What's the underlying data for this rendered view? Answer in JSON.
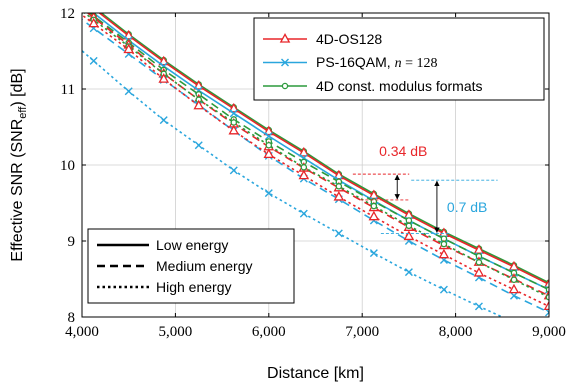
{
  "chart_data": {
    "type": "line",
    "xlabel": "Distance [km]",
    "ylabel_main": "Effective SNR (SNR",
    "ylabel_sub": "eff",
    "ylabel_tail": ") [dB]",
    "xlim": [
      4000,
      9000
    ],
    "ylim": [
      8,
      12
    ],
    "xticks": [
      4000,
      5000,
      6000,
      7000,
      8000,
      9000
    ],
    "xtick_labels": [
      "4,000",
      "5,000",
      "6,000",
      "7,000",
      "8,000",
      "9,000"
    ],
    "yticks": [
      8,
      9,
      10,
      11,
      12
    ],
    "ytick_labels": [
      "8",
      "9",
      "10",
      "11",
      "12"
    ],
    "grid": true,
    "format_legend": [
      {
        "name": "4D-OS128",
        "color": "#e8262a",
        "marker": "triangle"
      },
      {
        "name_main": "PS-16QAM, ",
        "name_math": "n",
        "name_tail": " = 128",
        "color": "#2aa6dd",
        "marker": "cross"
      },
      {
        "name": "4D const. modulus formats",
        "color": "#2c9a3c",
        "marker": "circle"
      }
    ],
    "energy_legend": [
      {
        "name": "Low energy",
        "dash": "solid"
      },
      {
        "name": "Medium energy",
        "dash": "dashed"
      },
      {
        "name": "High energy",
        "dash": "dotted"
      }
    ],
    "marker_x": [
      4125,
      4500,
      4875,
      5250,
      5625,
      6000,
      6375,
      6750,
      7125,
      7500,
      7875,
      8250,
      8625,
      9000
    ],
    "series": [
      {
        "format": "4D const. modulus formats",
        "energy": "Low energy",
        "x": [
          4125,
          4500,
          4875,
          5250,
          5625,
          6000,
          6375,
          6750,
          7125,
          7500,
          7875,
          8250,
          8625,
          9000
        ],
        "y": [
          12.08,
          11.72,
          11.38,
          11.06,
          10.76,
          10.46,
          10.18,
          9.88,
          9.62,
          9.36,
          9.12,
          8.9,
          8.68,
          8.45
        ]
      },
      {
        "format": "4D-OS128",
        "energy": "Low energy",
        "x": [
          4125,
          4500,
          4875,
          5250,
          5625,
          6000,
          6375,
          6750,
          7125,
          7500,
          7875,
          8250,
          8625,
          9000
        ],
        "y": [
          12.06,
          11.7,
          11.36,
          11.04,
          10.74,
          10.44,
          10.16,
          9.86,
          9.6,
          9.34,
          9.1,
          8.88,
          8.66,
          8.43
        ]
      },
      {
        "format": "PS-16QAM, n = 128",
        "energy": "Low energy",
        "x": [
          4125,
          4500,
          4875,
          5250,
          5625,
          6000,
          6375,
          6750,
          7125,
          7500,
          7875,
          8250,
          8625,
          9000
        ],
        "y": [
          12.0,
          11.64,
          11.3,
          10.98,
          10.68,
          10.38,
          10.09,
          9.8,
          9.53,
          9.27,
          9.03,
          8.8,
          8.58,
          8.36
        ]
      },
      {
        "format": "4D const. modulus formats",
        "energy": "Medium energy",
        "x": [
          4125,
          4500,
          4875,
          5250,
          5625,
          6000,
          6375,
          6750,
          7125,
          7500,
          7875,
          8250,
          8625,
          9000
        ],
        "y": [
          11.96,
          11.61,
          11.25,
          10.93,
          10.6,
          10.31,
          10.04,
          9.78,
          9.52,
          9.27,
          9.03,
          8.8,
          8.58,
          8.36
        ]
      },
      {
        "format": "4D-OS128",
        "energy": "Medium energy",
        "x": [
          4125,
          4500,
          4875,
          5250,
          5625,
          6000,
          6375,
          6750,
          7125,
          7500,
          7875,
          8250,
          8625,
          9000
        ],
        "y": [
          11.94,
          11.58,
          11.2,
          10.86,
          10.54,
          10.24,
          9.96,
          9.7,
          9.44,
          9.18,
          8.94,
          8.72,
          8.5,
          8.28
        ]
      },
      {
        "format": "PS-16QAM, n = 128",
        "energy": "Medium energy",
        "x": [
          4125,
          4500,
          4875,
          5250,
          5625,
          6000,
          6375,
          6750,
          7125,
          7500,
          7875,
          8250,
          8625,
          9000
        ],
        "y": [
          11.8,
          11.46,
          11.12,
          10.79,
          10.45,
          10.12,
          9.82,
          9.55,
          9.27,
          9.0,
          8.75,
          8.52,
          8.28,
          8.06
        ]
      },
      {
        "format": "4D const. modulus formats",
        "energy": "High energy",
        "x": [
          4125,
          4500,
          4875,
          5250,
          5625,
          6000,
          6375,
          6750,
          7125,
          7500,
          7875,
          8250,
          8625,
          9000
        ],
        "y": [
          11.91,
          11.56,
          11.2,
          10.86,
          10.56,
          10.26,
          9.97,
          9.72,
          9.46,
          9.2,
          8.96,
          8.72,
          8.49,
          8.26
        ]
      },
      {
        "format": "4D-OS128",
        "energy": "High energy",
        "x": [
          4125,
          4500,
          4875,
          5250,
          5625,
          6000,
          6375,
          6750,
          7125,
          7500,
          7875,
          8250,
          8625,
          9000
        ],
        "y": [
          11.86,
          11.52,
          11.13,
          10.78,
          10.45,
          10.14,
          9.86,
          9.58,
          9.32,
          9.06,
          8.82,
          8.58,
          8.36,
          8.14
        ]
      },
      {
        "format": "PS-16QAM, n = 128",
        "energy": "High energy",
        "x": [
          4125,
          4500,
          4875,
          5250,
          5625,
          6000,
          6375,
          6750,
          7125,
          7500,
          7875,
          8250,
          8625
        ],
        "y": [
          11.37,
          10.97,
          10.59,
          10.26,
          9.93,
          9.63,
          9.36,
          9.1,
          8.84,
          8.59,
          8.36,
          8.14,
          7.93
        ]
      }
    ],
    "annotations": [
      {
        "text": "0.34 dB",
        "color": "#e8262a",
        "from_y": 9.88,
        "to_y": 9.54,
        "at_x": 7375
      },
      {
        "text": "0.7 dB",
        "color": "#2aa6dd",
        "from_y": 9.8,
        "to_y": 9.1,
        "at_x": 7800
      }
    ]
  }
}
